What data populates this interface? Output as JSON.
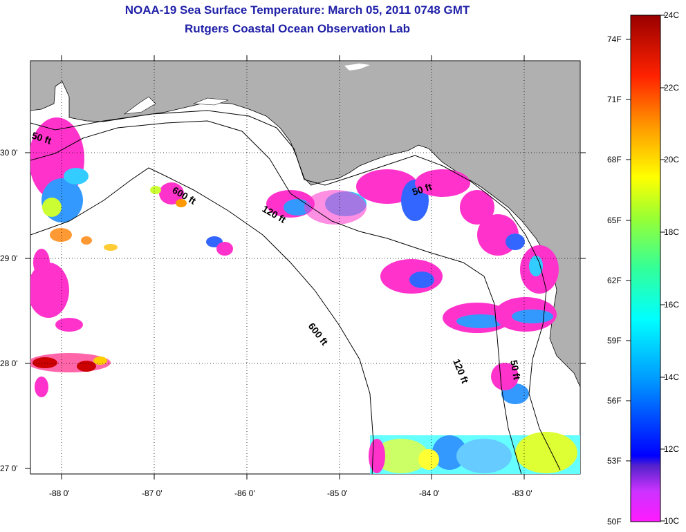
{
  "title": {
    "line1": "NOAA-19 Sea Surface Temperature:  March 05, 2011 0748 GMT",
    "line2": "Rutgers Coastal Ocean Observation Lab"
  },
  "map": {
    "lat_ticks": [
      "30 0'",
      "29 0'",
      "28 0'",
      "27 0'"
    ],
    "lon_ticks": [
      "-88 0'",
      "-87 0'",
      "-86 0'",
      "-85 0'",
      "-84 0'",
      "-83 0'"
    ],
    "contours": {
      "c50_left": "50 ft",
      "c50_right": "50 ft",
      "c50_coast": "50 ft",
      "c120_top": "120 ft",
      "c120_bottom": "120 ft",
      "c600_top": "600 ft",
      "c600_mid": "600 ft"
    },
    "colors": {
      "land": "#b0b0b0",
      "ocean": "#ffffff",
      "title": "#1f1fa8"
    }
  },
  "colorbar": {
    "fahrenheit": [
      "74F",
      "71F",
      "68F",
      "65F",
      "62F",
      "59F",
      "56F",
      "53F",
      "50F"
    ],
    "celsius": [
      "24C",
      "22C",
      "20C",
      "18C",
      "16C",
      "14C",
      "12C",
      "10C"
    ]
  }
}
